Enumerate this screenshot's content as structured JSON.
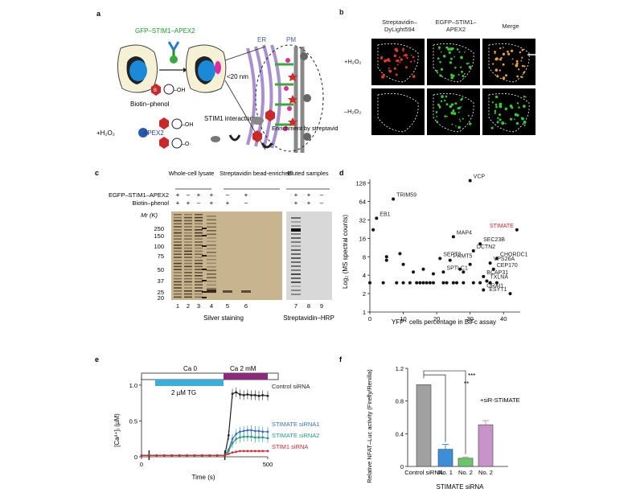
{
  "panel_a": {
    "letter": "a",
    "construct": "GFP–STIM1–APEX2",
    "probe": "Biotin–phenol",
    "distance": "<20 nm",
    "er": "ER",
    "pm": "PM",
    "h2o2": "+H₂O₂",
    "apex": "APEX2",
    "oh": "–OH",
    "o_radical": "–O·",
    "interactors": "STIM1 interactors",
    "enrichment": "Enrichment by streptavidin beads + MS",
    "biotin_badge": "B"
  },
  "panel_b": {
    "letter": "b",
    "col1": "Streptavidin–DyLight594",
    "col2": "EGFP–STIM1–APEX2",
    "col3": "Merge",
    "row1": "+H₂O₂",
    "row2": "–H₂O₂"
  },
  "panel_c": {
    "letter": "c",
    "group1": "Whole-cell lysate",
    "group2": "Streptavidin bead-enriched",
    "group3": "Eluted samples",
    "row1_label": "EGFP–STIM1–APEX2",
    "row2_label": "Biotin–phenol",
    "row1_signs": [
      "+",
      "–",
      "+",
      "+",
      "–",
      "+",
      "+",
      "+",
      "–"
    ],
    "row2_signs": [
      "+",
      "+",
      "–",
      "+",
      "+",
      "–",
      "+",
      "+",
      "–"
    ],
    "mr_label": "Mr (K)",
    "markers": [
      "250",
      "150",
      "100",
      "75",
      "50",
      "37",
      "25",
      "20"
    ],
    "lanes": [
      "1",
      "2",
      "3",
      "4",
      "5",
      "6",
      "7",
      "8",
      "9"
    ],
    "silver": "Silver staining",
    "hrp": "Streptavidin–HRP"
  },
  "panel_d": {
    "letter": "d",
    "ylabel": "Log₂ (MS spectral counts)",
    "xlabel": "YFP⁺ cells percentage in BiFc assay",
    "highlight_color": "#cc2222"
  },
  "panel_e": {
    "letter": "e",
    "ca0": "Ca 0",
    "ca2": "Ca 2 mM",
    "tg": "2 µM TG",
    "ylabel": "[Ca²⁺]ᵢ (µM)",
    "xlabel": "Time (s)"
  },
  "panel_f": {
    "letter": "f",
    "ylabel": "Relative NFAT–Luc activity (Firefly/Renilla)",
    "sig1": "**",
    "sig2": "***",
    "sir_label": "+siR-STIMATE",
    "group_label": "STIMATE siRNA"
  },
  "chart_data": [
    {
      "type": "scatter",
      "panel": "d",
      "xlabel": "YFP⁺ cells percentage in BiFc assay",
      "ylabel": "Log₂ (MS spectral counts)",
      "xlim": [
        0,
        45
      ],
      "x_ticks": [
        "0",
        "10",
        "20",
        "30",
        "40"
      ],
      "y_ticks": [
        "1",
        "2",
        "4",
        "8",
        "16",
        "32",
        "64",
        "128"
      ],
      "ylog2": true,
      "labeled_points": [
        {
          "name": "VCP",
          "x": 30,
          "y": 140
        },
        {
          "name": "TRIM59",
          "x": 7,
          "y": 70
        },
        {
          "name": "EB1",
          "x": 2,
          "y": 34
        },
        {
          "name": "STIMATE",
          "x": 44,
          "y": 22,
          "highlight": true
        },
        {
          "name": "MAP4",
          "x": 25,
          "y": 17
        },
        {
          "name": "SEC23B",
          "x": 33,
          "y": 13
        },
        {
          "name": "DCTN2",
          "x": 31,
          "y": 10
        },
        {
          "name": "CHORDC1",
          "x": 38,
          "y": 7.5
        },
        {
          "name": "SEPT2",
          "x": 21,
          "y": 7.5
        },
        {
          "name": "PRMT5",
          "x": 24,
          "y": 7
        },
        {
          "name": "VPS26A",
          "x": 36,
          "y": 6.3
        },
        {
          "name": "CEP170",
          "x": 37,
          "y": 5
        },
        {
          "name": "SPTLC1",
          "x": 22,
          "y": 4.5
        },
        {
          "name": "BCAP31",
          "x": 34,
          "y": 3.8
        },
        {
          "name": "TXLNA",
          "x": 35,
          "y": 3.2
        },
        {
          "name": "ORAI1",
          "x": 34,
          "y": 2.3
        },
        {
          "name": "ESYT1",
          "x": 42,
          "y": 2
        }
      ],
      "other_points": [
        {
          "x": 1,
          "y": 22
        },
        {
          "x": 5,
          "y": 8
        },
        {
          "x": 5,
          "y": 7
        },
        {
          "x": 9,
          "y": 9
        },
        {
          "x": 10,
          "y": 6
        },
        {
          "x": 13,
          "y": 4.5
        },
        {
          "x": 16,
          "y": 5
        },
        {
          "x": 19,
          "y": 4.2
        },
        {
          "x": 27,
          "y": 5
        },
        {
          "x": 28,
          "y": 4.5
        },
        {
          "x": 30,
          "y": 6
        },
        {
          "x": 0,
          "y": 3
        },
        {
          "x": 4,
          "y": 3
        },
        {
          "x": 8,
          "y": 3
        },
        {
          "x": 10,
          "y": 3
        },
        {
          "x": 12,
          "y": 3
        },
        {
          "x": 14,
          "y": 3
        },
        {
          "x": 15,
          "y": 3
        },
        {
          "x": 16,
          "y": 3
        },
        {
          "x": 17,
          "y": 3
        },
        {
          "x": 18,
          "y": 3
        },
        {
          "x": 19,
          "y": 3
        },
        {
          "x": 22,
          "y": 3
        },
        {
          "x": 23,
          "y": 3
        },
        {
          "x": 25,
          "y": 3
        },
        {
          "x": 26,
          "y": 3
        },
        {
          "x": 28,
          "y": 3
        },
        {
          "x": 31,
          "y": 3
        },
        {
          "x": 33,
          "y": 3
        },
        {
          "x": 36,
          "y": 3
        },
        {
          "x": 38,
          "y": 3
        }
      ]
    },
    {
      "type": "line",
      "panel": "e",
      "xlabel": "Time (s)",
      "ylabel": "[Ca²⁺]ᵢ (µM)",
      "xlim": [
        0,
        500
      ],
      "ylim": [
        0,
        1.1
      ],
      "x_ticks": [
        "0",
        "500"
      ],
      "y_ticks": [
        "0",
        "0.5",
        "1.0"
      ],
      "series": [
        {
          "name": "Control siRNA",
          "color": "#222222",
          "x": [
            0,
            30,
            60,
            90,
            120,
            150,
            180,
            210,
            240,
            270,
            300,
            330,
            345,
            360,
            375,
            390,
            405,
            420,
            435,
            450,
            465,
            480,
            500
          ],
          "y": [
            0.02,
            0.02,
            0.02,
            0.02,
            0.02,
            0.02,
            0.02,
            0.02,
            0.02,
            0.02,
            0.02,
            0.02,
            0.3,
            0.88,
            0.9,
            0.87,
            0.86,
            0.87,
            0.86,
            0.86,
            0.85,
            0.86,
            0.85
          ]
        },
        {
          "name": "STIMATE siRNA1",
          "color": "#3a6fc4",
          "x": [
            0,
            30,
            60,
            90,
            120,
            150,
            180,
            210,
            240,
            270,
            300,
            330,
            345,
            360,
            375,
            390,
            405,
            420,
            435,
            450,
            465,
            480,
            500
          ],
          "y": [
            0.02,
            0.02,
            0.02,
            0.02,
            0.02,
            0.02,
            0.02,
            0.02,
            0.02,
            0.02,
            0.02,
            0.02,
            0.1,
            0.25,
            0.32,
            0.35,
            0.36,
            0.37,
            0.37,
            0.36,
            0.36,
            0.35,
            0.35
          ]
        },
        {
          "name": "STIMATE siRNA2",
          "color": "#2a9a7a",
          "x": [
            0,
            30,
            60,
            90,
            120,
            150,
            180,
            210,
            240,
            270,
            300,
            330,
            345,
            360,
            375,
            390,
            405,
            420,
            435,
            450,
            465,
            480,
            500
          ],
          "y": [
            0.02,
            0.02,
            0.02,
            0.02,
            0.02,
            0.02,
            0.02,
            0.02,
            0.02,
            0.02,
            0.02,
            0.02,
            0.08,
            0.19,
            0.25,
            0.27,
            0.28,
            0.28,
            0.28,
            0.27,
            0.27,
            0.27,
            0.26
          ]
        },
        {
          "name": "STIM1 siRNA",
          "color": "#d42a2a",
          "x": [
            0,
            30,
            60,
            90,
            120,
            150,
            180,
            210,
            240,
            270,
            300,
            330,
            345,
            360,
            375,
            390,
            405,
            420,
            435,
            450,
            465,
            480,
            500
          ],
          "y": [
            0.02,
            0.02,
            0.02,
            0.02,
            0.02,
            0.02,
            0.02,
            0.02,
            0.02,
            0.02,
            0.02,
            0.02,
            0.04,
            0.06,
            0.07,
            0.08,
            0.08,
            0.08,
            0.08,
            0.08,
            0.08,
            0.08,
            0.08
          ]
        }
      ]
    },
    {
      "type": "bar",
      "panel": "f",
      "ylabel": "Relative NFAT–Luc activity (Firefly/Renilla)",
      "ylim": [
        0,
        1.2
      ],
      "y_ticks": [
        "0",
        "0.4",
        "0.8",
        "1.2"
      ],
      "categories": [
        "Control siRNA",
        "No. 1",
        "No. 2",
        "No. 2"
      ],
      "values": [
        1.0,
        0.21,
        0.1,
        0.51
      ],
      "errors": [
        0.0,
        0.06,
        0.015,
        0.05
      ],
      "colors": [
        "#a0a0a0",
        "#3a8fd8",
        "#6cc46c",
        "#c893c8"
      ]
    }
  ]
}
